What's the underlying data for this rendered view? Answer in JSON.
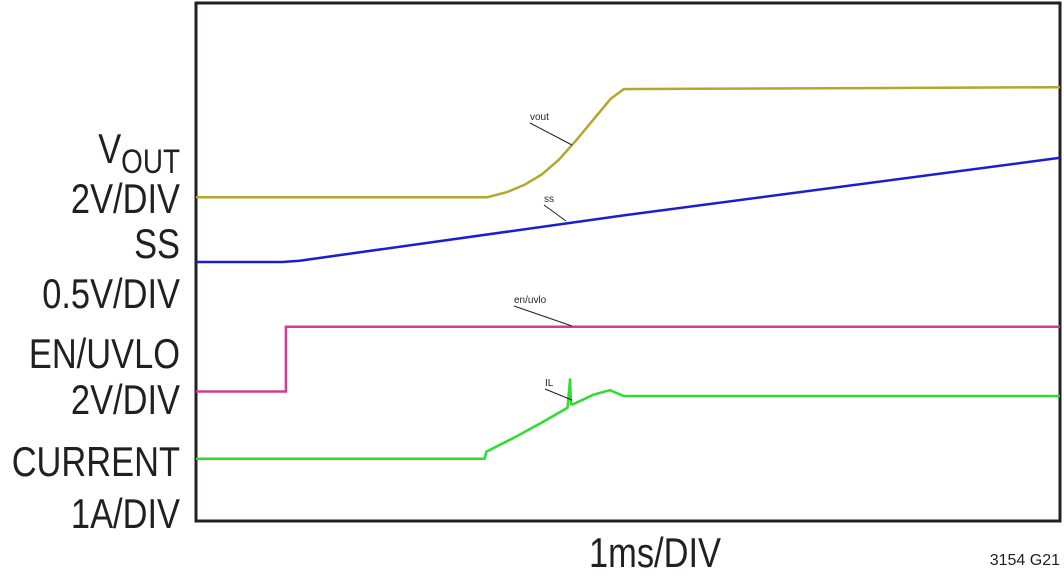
{
  "chart_data": {
    "type": "line",
    "series": [
      {
        "name": "vout",
        "color": "#b3a72c",
        "x": [
          0,
          3.37,
          3.6,
          3.8,
          4.0,
          4.2,
          4.4,
          4.6,
          4.8,
          4.95,
          10
        ],
        "values": [
          5.0,
          5.0,
          5.08,
          5.19,
          5.35,
          5.58,
          5.88,
          6.2,
          6.52,
          6.67,
          6.7
        ]
      },
      {
        "name": "ss",
        "color": "#1c1cd6",
        "x": [
          0,
          1.0,
          1.2,
          4.95,
          10
        ],
        "values": [
          4.0,
          4.0,
          4.02,
          4.72,
          5.61
        ]
      },
      {
        "name": "en/uvlo",
        "color": "#d83b8c",
        "x": [
          0,
          1.04,
          1.04,
          10
        ],
        "values": [
          2.0,
          2.0,
          3.0,
          3.0
        ]
      },
      {
        "name": "IL",
        "color": "#2ede2e",
        "x": [
          0,
          3.34,
          3.36,
          3.7,
          4.0,
          4.3,
          4.33,
          4.34,
          4.36,
          4.6,
          4.79,
          4.95,
          10
        ],
        "values": [
          0.96,
          0.96,
          1.07,
          1.3,
          1.52,
          1.75,
          2.2,
          1.8,
          1.8,
          1.95,
          2.02,
          1.93,
          1.93
        ]
      }
    ],
    "xlim": [
      0,
      10
    ],
    "ylim": [
      0,
      8
    ],
    "xticks": [
      0,
      1,
      2,
      3,
      4,
      5,
      6,
      7,
      8,
      9,
      10
    ],
    "yticks": [
      0,
      1,
      2,
      3,
      4,
      5,
      6,
      7,
      8
    ],
    "grid": true,
    "left_labels": [
      {
        "main": "V",
        "sub": "OUT"
      },
      {
        "main": "2V/DIV"
      },
      {
        "main": "SS"
      },
      {
        "main": "0.5V/DIV"
      },
      {
        "main": "EN/UVLO"
      },
      {
        "main": "2V/DIV"
      },
      {
        "main": "CURRENT"
      },
      {
        "main": "1A/DIV"
      }
    ],
    "xlabel": "1ms/DIV",
    "figure_id": "3154 G21"
  }
}
